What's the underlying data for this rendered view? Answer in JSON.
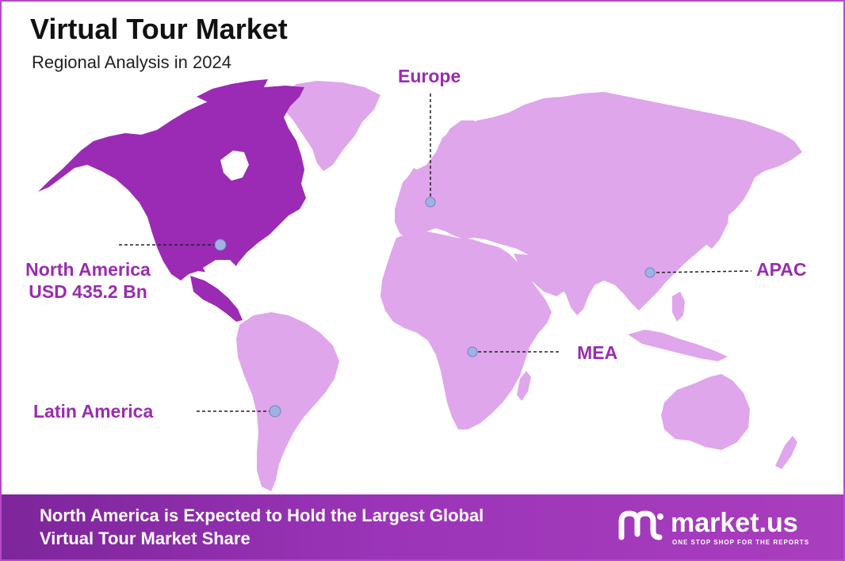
{
  "header": {
    "title": "Virtual Tour Market",
    "subtitle": "Regional Analysis in 2024"
  },
  "regions": [
    {
      "name": "Europe",
      "highlighted": false
    },
    {
      "name": "North America",
      "value": "USD 435.2 Bn",
      "highlighted": true
    },
    {
      "name": "APAC",
      "highlighted": false
    },
    {
      "name": "MEA",
      "highlighted": false
    },
    {
      "name": "Latin America",
      "highlighted": false
    }
  ],
  "banner": {
    "line1": "North America is Expected to Hold the Largest Global",
    "line2": "Virtual Tour Market Share"
  },
  "brand": {
    "name": "market.us",
    "tagline": "ONE STOP SHOP FOR THE REPORTS"
  },
  "colors": {
    "highlight": "#9b2ab5",
    "land": "#dfa6ec",
    "label": "#9a2bb1",
    "marker": "#9fb3e3",
    "banner": "#8a2ba8",
    "border": "#b64ac8"
  }
}
